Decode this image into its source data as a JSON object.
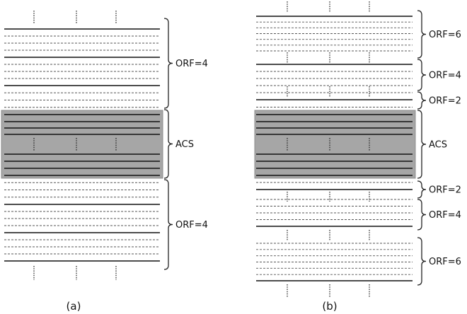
{
  "colors": {
    "acs_fill": "#a6a6a6",
    "acs_border": "#8c8c8c",
    "line": "#111111",
    "dashed": "#555555"
  },
  "panels": {
    "a": {
      "caption": "(a)",
      "brackets": [
        {
          "label": "ORF=4"
        },
        {
          "label": "ACS"
        },
        {
          "label": "ORF=4"
        }
      ]
    },
    "b": {
      "caption": "(b)",
      "brackets": [
        {
          "label": "ORF=6"
        },
        {
          "label": "ORF=4"
        },
        {
          "label": "ORF=2"
        },
        {
          "label": "ACS"
        },
        {
          "label": "ORF=2"
        },
        {
          "label": "ORF=4"
        },
        {
          "label": "ORF=6"
        }
      ]
    }
  }
}
